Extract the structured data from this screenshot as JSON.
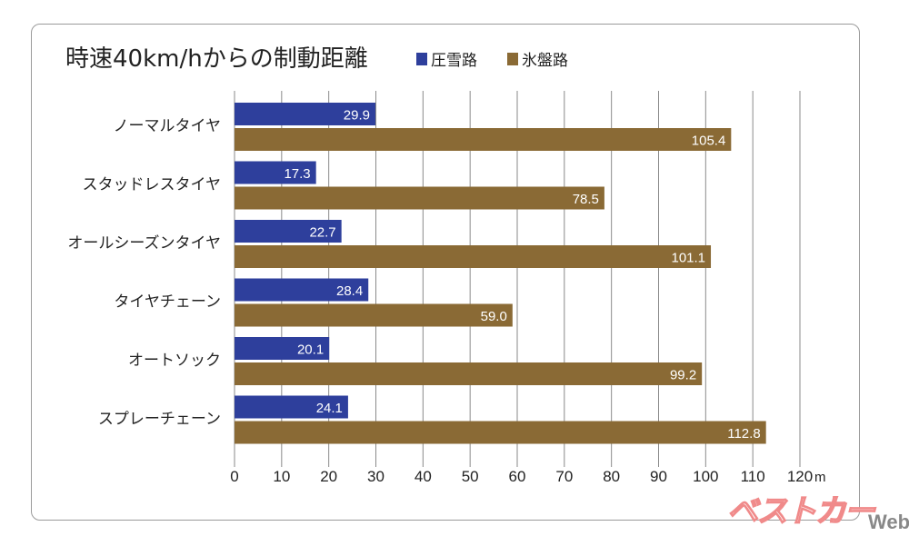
{
  "chart_data": {
    "type": "bar",
    "orientation": "horizontal",
    "title": "時速40km/hからの制動距離",
    "categories": [
      "ノーマルタイヤ",
      "スタッドレスタイヤ",
      "オールシーズンタイヤ",
      "タイヤチェーン",
      "オートソック",
      "スプレーチェーン"
    ],
    "series": [
      {
        "name": "圧雪路",
        "color": "#2e3f9c",
        "values": [
          29.9,
          17.3,
          22.7,
          28.4,
          20.1,
          24.1
        ],
        "labels": [
          "29.9",
          "17.3",
          "22.7",
          "28.4",
          "20.1",
          "24.1"
        ]
      },
      {
        "name": "氷盤路",
        "color": "#8a6a35",
        "values": [
          105.4,
          78.5,
          101.1,
          59.0,
          99.2,
          112.8
        ],
        "labels": [
          "105.4",
          "78.5",
          "101.1",
          "59.0",
          "99.2",
          "112.8"
        ]
      }
    ],
    "xlim": [
      0,
      120
    ],
    "xticks": [
      "0",
      "10",
      "20",
      "30",
      "40",
      "50",
      "60",
      "70",
      "80",
      "90",
      "100",
      "110",
      "120"
    ],
    "xunit": "m",
    "grid": true,
    "legend": "top"
  },
  "watermark": {
    "brand": "ベストカー",
    "suffix": "Web"
  }
}
